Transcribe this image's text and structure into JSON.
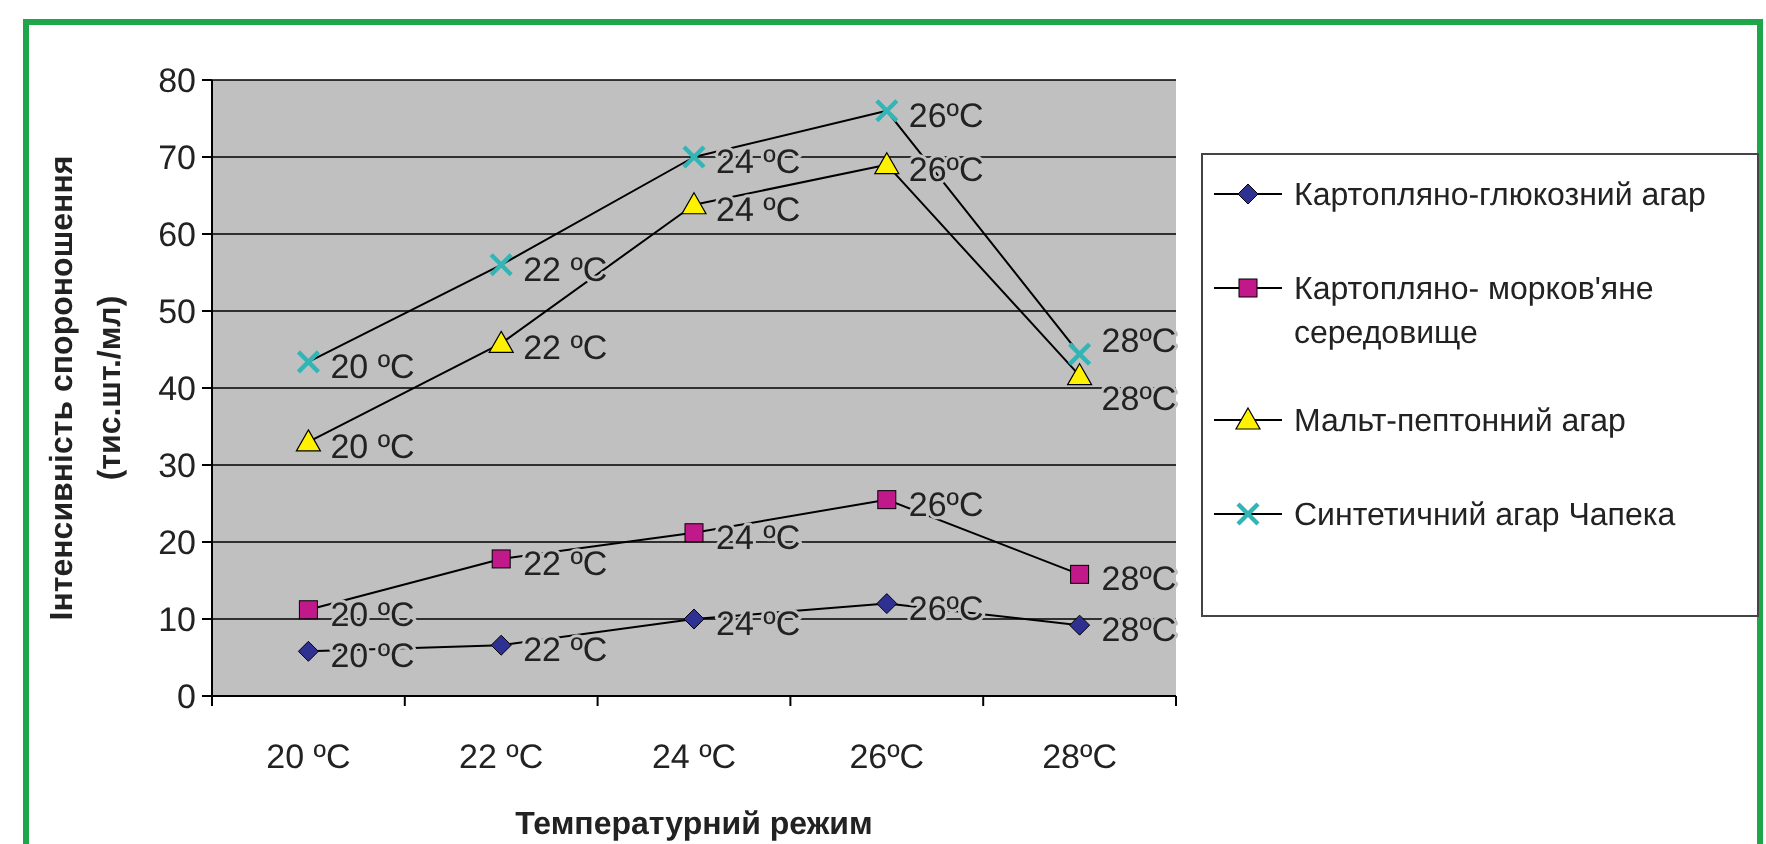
{
  "chart_data": {
    "type": "line",
    "xlabel": "Температурний режим",
    "ylabel": "Інтенсивність спороношення\n(тис.шт./мл)",
    "categories": [
      "20 ºC",
      "22 ºC",
      "24 ºC",
      "26ºC",
      "28ºC"
    ],
    "ylim": [
      0,
      80
    ],
    "yticks": [
      0,
      10,
      20,
      30,
      40,
      50,
      60,
      70,
      80
    ],
    "grid": "y",
    "legend": "right",
    "series": [
      {
        "name": "Картопляно-глюкозний агар",
        "color": "#2e3192",
        "marker": "diamond",
        "values": [
          5.8,
          6.6,
          10,
          12,
          9.2
        ]
      },
      {
        "name": "Картопляно- морков'яне середовище",
        "color": "#c2198a",
        "marker": "square",
        "values": [
          11.2,
          17.8,
          21.2,
          25.5,
          15.8
        ]
      },
      {
        "name": "Мальт-пептонний агар",
        "color": "#fff200",
        "marker": "triangle",
        "values": [
          33,
          45.8,
          63.8,
          69,
          41.6
        ]
      },
      {
        "name": "Синтетичний агар Чапека",
        "color": "#33b5b5",
        "marker": "cross",
        "values": [
          43.4,
          56,
          70,
          76,
          44.4
        ]
      }
    ],
    "annotations": [
      {
        "text": "20 ºC",
        "x": "20 ºC",
        "y": 5.8
      },
      {
        "text": "22 ºC",
        "x": "22 ºC",
        "y": 6.6
      },
      {
        "text": "24 ºC",
        "x": "24 ºC",
        "y": 10
      },
      {
        "text": "26ºC",
        "x": "26ºC",
        "y": 12
      },
      {
        "text": "28ºC",
        "x": "28ºC",
        "y": 9.2
      },
      {
        "text": "20 ºC",
        "x": "20 ºC",
        "y": 11.2
      },
      {
        "text": "22 ºC",
        "x": "22 ºC",
        "y": 17.8
      },
      {
        "text": "24 ºC",
        "x": "24 ºC",
        "y": 21.2
      },
      {
        "text": "26ºC",
        "x": "26ºC",
        "y": 25.5
      },
      {
        "text": "28ºC",
        "x": "28ºC",
        "y": 15.8
      },
      {
        "text": "20 ºC",
        "x": "20 ºC",
        "y": 33
      },
      {
        "text": "22 ºC",
        "x": "22 ºC",
        "y": 45.8
      },
      {
        "text": "24 ºC",
        "x": "24 ºC",
        "y": 63.8
      },
      {
        "text": "26ºC",
        "x": "26ºC",
        "y": 69
      },
      {
        "text": "28ºC",
        "x": "28ºC",
        "y": 41.6
      },
      {
        "text": "20 ºC",
        "x": "20 ºC",
        "y": 43.4
      },
      {
        "text": "22 ºC",
        "x": "22 ºC",
        "y": 56
      },
      {
        "text": "24 ºC",
        "x": "24 ºC",
        "y": 70
      },
      {
        "text": "26ºC",
        "x": "26ºC",
        "y": 76
      },
      {
        "text": "28ºC",
        "x": "28ºC",
        "y": 44.4
      }
    ]
  }
}
